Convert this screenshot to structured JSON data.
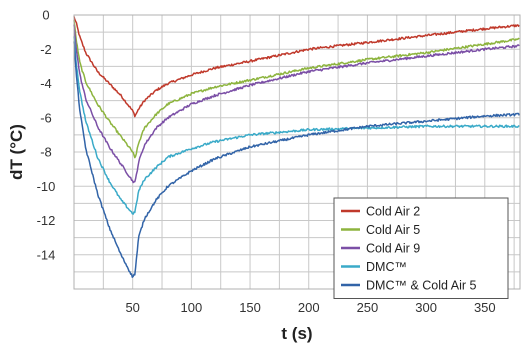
{
  "chart_data": {
    "type": "line",
    "xlabel": "t (s)",
    "ylabel": "dT (°C)",
    "xlim": [
      0,
      380
    ],
    "ylim": [
      -16,
      0
    ],
    "x_ticks": [
      50,
      100,
      150,
      200,
      250,
      300,
      350
    ],
    "x_grid": [
      25,
      50,
      75,
      100,
      125,
      150,
      175,
      200,
      225,
      250,
      275,
      300,
      325,
      350,
      375
    ],
    "y_ticks": [
      0,
      -2,
      -4,
      -6,
      -8,
      -10,
      -12,
      -14
    ],
    "y_grid": [
      0,
      -1,
      -2,
      -3,
      -4,
      -5,
      -6,
      -7,
      -8,
      -9,
      -10,
      -11,
      -12,
      -13,
      -14,
      -15,
      -16
    ],
    "grid": true,
    "legend_position": "bottom-right",
    "series": [
      {
        "name": "Cold Air 2",
        "color": "#c0392b",
        "x": [
          0,
          2,
          5,
          10,
          20,
          30,
          40,
          50,
          52,
          55,
          60,
          70,
          80,
          100,
          120,
          150,
          200,
          250,
          300,
          350,
          380
        ],
        "y": [
          -0.1,
          -0.5,
          -1.3,
          -2.2,
          -3.3,
          -4.0,
          -4.7,
          -5.6,
          -5.9,
          -5.5,
          -5.0,
          -4.4,
          -4.0,
          -3.5,
          -3.1,
          -2.7,
          -2.0,
          -1.6,
          -1.2,
          -0.8,
          -0.6
        ]
      },
      {
        "name": "Cold Air 5",
        "color": "#8db43e",
        "x": [
          0,
          2,
          5,
          10,
          20,
          30,
          40,
          50,
          52,
          55,
          60,
          70,
          80,
          100,
          120,
          150,
          200,
          250,
          300,
          350,
          380
        ],
        "y": [
          -0.3,
          -1.5,
          -2.8,
          -3.9,
          -5.2,
          -6.2,
          -7.1,
          -8.0,
          -8.4,
          -7.5,
          -6.6,
          -5.8,
          -5.2,
          -4.6,
          -4.2,
          -3.8,
          -3.1,
          -2.6,
          -2.2,
          -1.7,
          -1.4
        ]
      },
      {
        "name": "Cold Air 9",
        "color": "#7b4fa6",
        "x": [
          0,
          2,
          5,
          10,
          20,
          30,
          40,
          50,
          52,
          55,
          60,
          70,
          80,
          100,
          120,
          150,
          200,
          250,
          300,
          350,
          380
        ],
        "y": [
          -0.6,
          -2.0,
          -3.5,
          -4.9,
          -6.5,
          -7.7,
          -8.7,
          -9.7,
          -9.8,
          -8.6,
          -7.6,
          -6.6,
          -6.0,
          -5.2,
          -4.7,
          -4.1,
          -3.3,
          -2.8,
          -2.4,
          -2.0,
          -1.8
        ]
      },
      {
        "name": "DMC™",
        "color": "#3aaac8",
        "x": [
          0,
          2,
          5,
          10,
          20,
          30,
          40,
          50,
          52,
          55,
          60,
          70,
          80,
          100,
          120,
          150,
          200,
          250,
          300,
          350,
          380
        ],
        "y": [
          -1.2,
          -2.9,
          -4.5,
          -6.2,
          -8.3,
          -9.7,
          -10.8,
          -11.6,
          -11.5,
          -10.3,
          -9.6,
          -8.9,
          -8.3,
          -7.8,
          -7.4,
          -7.0,
          -6.7,
          -6.6,
          -6.5,
          -6.5,
          -6.5
        ]
      },
      {
        "name": "DMC™ & Cold Air 5",
        "color": "#3264a8",
        "x": [
          0,
          2,
          5,
          10,
          20,
          30,
          40,
          50,
          52,
          55,
          60,
          70,
          80,
          100,
          120,
          150,
          200,
          250,
          300,
          350,
          380
        ],
        "y": [
          -1.5,
          -3.5,
          -5.6,
          -7.8,
          -10.4,
          -12.4,
          -14.0,
          -15.3,
          -15.1,
          -13.0,
          -11.9,
          -10.8,
          -10.0,
          -9.1,
          -8.4,
          -7.7,
          -7.0,
          -6.5,
          -6.2,
          -5.9,
          -5.8
        ]
      }
    ]
  }
}
